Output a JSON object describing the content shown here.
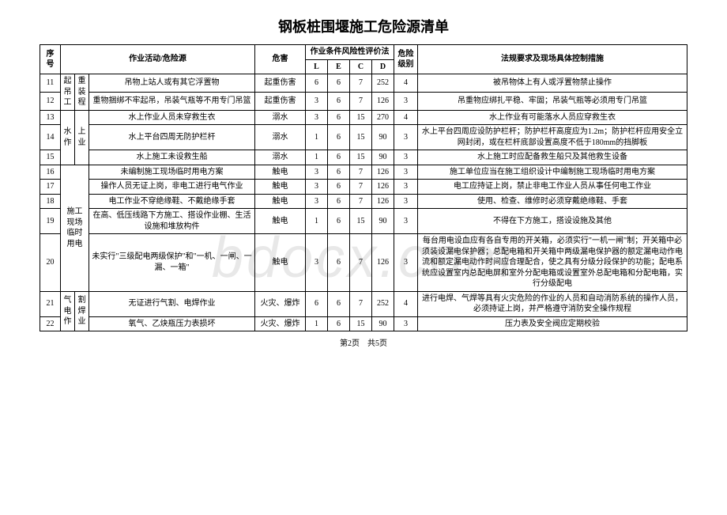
{
  "title": "钢板桩围堰施工危险源清单",
  "watermark": "bdocx.com",
  "footer": "第2页　共5页",
  "header": {
    "seq": "序号",
    "activity": "作业活动/危险源",
    "hazard": "危害",
    "risk_method": "作业条件风险性评价法",
    "L": "L",
    "E": "E",
    "C": "C",
    "D": "D",
    "level": "危险级别",
    "measure": "法规要求及现场具体控制措施"
  },
  "groups": [
    {
      "cat": "起吊工",
      "sub": "重装程",
      "span": 2,
      "rows": [
        {
          "seq": "11",
          "activity": "吊物上站人或有其它浮置物",
          "hazard": "起重伤害",
          "L": "6",
          "E": "6",
          "C": "7",
          "D": "252",
          "level": "4",
          "measure": "被吊物体上有人或浮置物禁止操作"
        },
        {
          "seq": "12",
          "activity": "重物捆绑不牢起吊，吊装气瓶等不用专门吊篮",
          "hazard": "起重伤害",
          "L": "3",
          "E": "6",
          "C": "7",
          "D": "126",
          "level": "3",
          "measure": "吊重物应绑扎平稳、牢固；吊装气瓶等必须用专门吊篮"
        }
      ]
    },
    {
      "cat": "水作",
      "sub": "上业",
      "span": 3,
      "rows": [
        {
          "seq": "13",
          "activity": "水上作业人员未穿救生衣",
          "hazard": "溺水",
          "L": "3",
          "E": "6",
          "C": "15",
          "D": "270",
          "level": "4",
          "measure": "水上作业有可能落水人员应穿救生衣"
        },
        {
          "seq": "14",
          "activity": "水上平台四周无防护栏杆",
          "hazard": "溺水",
          "L": "1",
          "E": "6",
          "C": "15",
          "D": "90",
          "level": "3",
          "measure": "水上平台四周应设防护栏杆；防护栏杆高度应为1.2m；防护栏杆应用安全立网封闭，或在栏杆底部设置高度不低于180mm的挡脚板"
        },
        {
          "seq": "15",
          "activity": "水上施工未设救生船",
          "hazard": "溺水",
          "L": "1",
          "E": "6",
          "C": "15",
          "D": "90",
          "level": "3",
          "measure": "水上施工时应配备救生船只及其他救生设备"
        }
      ]
    },
    {
      "cat": "施工现场临时用电",
      "sub": "",
      "span": 5,
      "rows": [
        {
          "seq": "16",
          "activity": "未编制施工现场临时用电方案",
          "hazard": "触电",
          "L": "3",
          "E": "6",
          "C": "7",
          "D": "126",
          "level": "3",
          "measure": "施工单位应当在施工组织设计中编制施工现场临时用电方案"
        },
        {
          "seq": "17",
          "activity": "操作人员无证上岗，非电工进行电气作业",
          "hazard": "触电",
          "L": "3",
          "E": "6",
          "C": "7",
          "D": "126",
          "level": "3",
          "measure": "电工应持证上岗，禁止非电工作业人员从事任何电工作业"
        },
        {
          "seq": "18",
          "activity": "电工作业不穿绝缘鞋、不戴绝缘手套",
          "hazard": "触电",
          "L": "3",
          "E": "6",
          "C": "7",
          "D": "126",
          "level": "3",
          "measure": "使用、检查、维修时必须穿戴绝缘鞋、手套"
        },
        {
          "seq": "19",
          "activity": "在高、低压线路下方施工、搭设作业棚、生活设施和堆放构件",
          "hazard": "触电",
          "L": "1",
          "E": "6",
          "C": "15",
          "D": "90",
          "level": "3",
          "measure": "不得在下方施工，搭设设施及其他"
        },
        {
          "seq": "20",
          "activity": "未实行\"三级配电两级保护\"和\"一机、一闸、一漏、一箱\"",
          "hazard": "触电",
          "L": "3",
          "E": "6",
          "C": "7",
          "D": "126",
          "level": "3",
          "measure": "每台用电设血应有各自专用的开关箱，必须实行\"一机一闸\"制；开关箱中必须装设漏电保护器；总配电箱和开关箱中两级漏电保护器的额定漏电动作电流和额定漏电动作时间应合理配合，使之具有分级分段保护的功能；配电系统应设置室内总配电屏和室外分配电箱或设置室外总配电箱和分配电箱，实行分级配电"
        }
      ]
    },
    {
      "cat": "气电作",
      "sub": "割焊业",
      "span": 2,
      "rows": [
        {
          "seq": "21",
          "activity": "无证进行气割、电焊作业",
          "hazard": "火灾、爆炸",
          "L": "6",
          "E": "6",
          "C": "7",
          "D": "252",
          "level": "4",
          "measure": "进行电焊、气焊等具有火灾危险的作业的人员和自动消防系统的操作人员，必须持证上岗，并严格遵守消防安全操作规程"
        },
        {
          "seq": "22",
          "activity": "氧气、乙炔瓶压力表损坏",
          "hazard": "火灾、爆炸",
          "L": "1",
          "E": "6",
          "C": "15",
          "D": "90",
          "level": "3",
          "measure": "压力表及安全阀应定期校验"
        }
      ]
    }
  ]
}
